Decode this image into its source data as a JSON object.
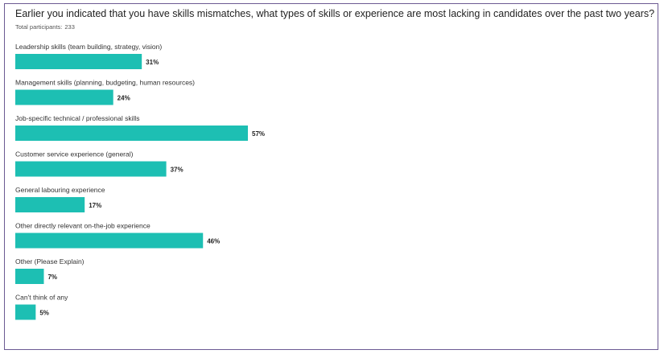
{
  "header": {
    "question": "Earlier you indicated that you have skills mismatches, what types of skills or experience are most lacking in candidates over the past two years?",
    "participants_label": "Total participants:",
    "participants_count": "233"
  },
  "colors": {
    "bar": "#1dbfb3",
    "frame": "#6c5a93"
  },
  "chart_data": {
    "type": "bar",
    "orientation": "horizontal",
    "title": "Earlier you indicated that you have skills mismatches, what types of skills or experience are most lacking in candidates over the past two years?",
    "categories": [
      "Leadership skills (team building, strategy, vision)",
      "Management skills (planning, budgeting, human resources)",
      "Job-specific technical / professional skills",
      "Customer service experience (general)",
      "General labouring experience",
      "Other directly relevant on-the-job experience",
      "Other (Please Explain)",
      "Can't think of any"
    ],
    "values": [
      31,
      24,
      57,
      37,
      17,
      46,
      7,
      5
    ],
    "value_labels": [
      "31%",
      "24%",
      "57%",
      "37%",
      "17%",
      "46%",
      "7%",
      "5%"
    ],
    "unit": "%",
    "xlim": [
      0,
      100
    ],
    "grid": false,
    "legend": "none"
  }
}
